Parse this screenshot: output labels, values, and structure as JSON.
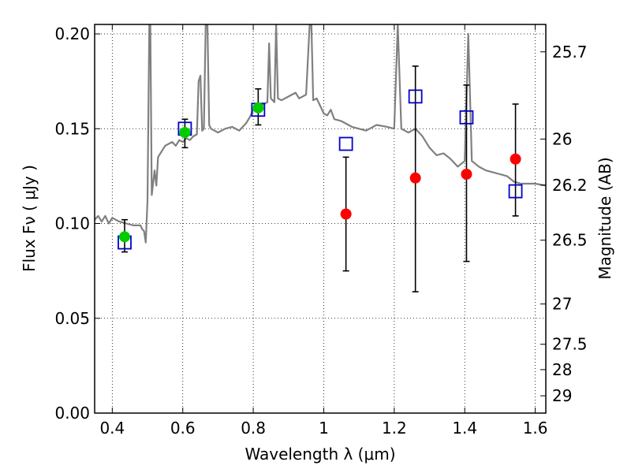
{
  "chart_data": {
    "type": "scatter",
    "xlabel": "Wavelength  λ (μm)",
    "ylabel": "Flux  Fν  ( μJy )",
    "ylabel_right": "Magnitude (AB)",
    "xlim": [
      0.35,
      1.63
    ],
    "ylim": [
      0.0,
      0.205
    ],
    "grid": true,
    "x_ticks": [
      0.4,
      0.6,
      0.8,
      1.0,
      1.2,
      1.4,
      1.6
    ],
    "x_tick_labels": [
      "0.4",
      "0.6",
      "0.8",
      "1",
      "1.2",
      "1.4",
      "1.6"
    ],
    "y_ticks": [
      0.0,
      0.05,
      0.1,
      0.15,
      0.2
    ],
    "y_tick_labels": [
      "0.00",
      "0.05",
      "0.10",
      "0.15",
      "0.20"
    ],
    "right_ticks": [
      {
        "label": "25.7",
        "mag": 25.7
      },
      {
        "label": "26",
        "mag": 26.0
      },
      {
        "label": "26.2",
        "mag": 26.2
      },
      {
        "label": "26.5",
        "mag": 26.5
      },
      {
        "label": "27",
        "mag": 27.0
      },
      {
        "label": "27.5",
        "mag": 27.5
      },
      {
        "label": "28",
        "mag": 28.0
      },
      {
        "label": "29",
        "mag": 29.0
      }
    ],
    "model_spectrum": {
      "color": "#808080",
      "points": [
        [
          0.35,
          0.102
        ],
        [
          0.36,
          0.104
        ],
        [
          0.37,
          0.101
        ],
        [
          0.38,
          0.104
        ],
        [
          0.39,
          0.1
        ],
        [
          0.4,
          0.103
        ],
        [
          0.42,
          0.101
        ],
        [
          0.44,
          0.1
        ],
        [
          0.46,
          0.099
        ],
        [
          0.48,
          0.099
        ],
        [
          0.485,
          0.097
        ],
        [
          0.49,
          0.096
        ],
        [
          0.495,
          0.09
        ],
        [
          0.5,
          0.112
        ],
        [
          0.505,
          0.205
        ],
        [
          0.508,
          0.205
        ],
        [
          0.512,
          0.115
        ],
        [
          0.52,
          0.128
        ],
        [
          0.525,
          0.12
        ],
        [
          0.53,
          0.135
        ],
        [
          0.54,
          0.138
        ],
        [
          0.55,
          0.141
        ],
        [
          0.56,
          0.142
        ],
        [
          0.57,
          0.143
        ],
        [
          0.58,
          0.141
        ],
        [
          0.59,
          0.144
        ],
        [
          0.6,
          0.143
        ],
        [
          0.61,
          0.145
        ],
        [
          0.62,
          0.144
        ],
        [
          0.63,
          0.146
        ],
        [
          0.64,
          0.147
        ],
        [
          0.645,
          0.175
        ],
        [
          0.65,
          0.178
        ],
        [
          0.655,
          0.149
        ],
        [
          0.66,
          0.15
        ],
        [
          0.665,
          0.205
        ],
        [
          0.67,
          0.205
        ],
        [
          0.675,
          0.152
        ],
        [
          0.68,
          0.15
        ],
        [
          0.7,
          0.148
        ],
        [
          0.72,
          0.15
        ],
        [
          0.74,
          0.151
        ],
        [
          0.76,
          0.149
        ],
        [
          0.78,
          0.153
        ],
        [
          0.79,
          0.156
        ],
        [
          0.8,
          0.16
        ],
        [
          0.81,
          0.159
        ],
        [
          0.82,
          0.162
        ],
        [
          0.84,
          0.164
        ],
        [
          0.845,
          0.195
        ],
        [
          0.85,
          0.166
        ],
        [
          0.86,
          0.164
        ],
        [
          0.865,
          0.205
        ],
        [
          0.87,
          0.166
        ],
        [
          0.88,
          0.165
        ],
        [
          0.9,
          0.167
        ],
        [
          0.92,
          0.169
        ],
        [
          0.93,
          0.166
        ],
        [
          0.95,
          0.168
        ],
        [
          0.96,
          0.205
        ],
        [
          0.965,
          0.205
        ],
        [
          0.97,
          0.165
        ],
        [
          0.98,
          0.166
        ],
        [
          0.99,
          0.162
        ],
        [
          1.0,
          0.158
        ],
        [
          1.01,
          0.157
        ],
        [
          1.02,
          0.16
        ],
        [
          1.03,
          0.155
        ],
        [
          1.05,
          0.154
        ],
        [
          1.08,
          0.151
        ],
        [
          1.1,
          0.15
        ],
        [
          1.12,
          0.149
        ],
        [
          1.15,
          0.152
        ],
        [
          1.18,
          0.151
        ],
        [
          1.2,
          0.15
        ],
        [
          1.21,
          0.205
        ],
        [
          1.22,
          0.15
        ],
        [
          1.24,
          0.148
        ],
        [
          1.26,
          0.15
        ],
        [
          1.28,
          0.146
        ],
        [
          1.3,
          0.14
        ],
        [
          1.32,
          0.136
        ],
        [
          1.34,
          0.137
        ],
        [
          1.36,
          0.134
        ],
        [
          1.38,
          0.13
        ],
        [
          1.4,
          0.133
        ],
        [
          1.41,
          0.2
        ],
        [
          1.42,
          0.133
        ],
        [
          1.44,
          0.13
        ],
        [
          1.46,
          0.128
        ],
        [
          1.48,
          0.127
        ],
        [
          1.5,
          0.126
        ],
        [
          1.52,
          0.125
        ],
        [
          1.54,
          0.122
        ],
        [
          1.56,
          0.121
        ],
        [
          1.58,
          0.121
        ],
        [
          1.6,
          0.121
        ],
        [
          1.63,
          0.12
        ]
      ]
    },
    "series": [
      {
        "marker": "square",
        "color": "#0000cc",
        "points": [
          {
            "x": 0.435,
            "y": 0.09
          },
          {
            "x": 0.606,
            "y": 0.15
          },
          {
            "x": 0.814,
            "y": 0.16
          },
          {
            "x": 1.063,
            "y": 0.142
          },
          {
            "x": 1.26,
            "y": 0.167
          },
          {
            "x": 1.405,
            "y": 0.156
          },
          {
            "x": 1.544,
            "y": 0.117
          }
        ]
      },
      {
        "marker": "circle",
        "color": "#00cc00",
        "points": [
          {
            "x": 0.435,
            "y": 0.093,
            "err_lo": 0.085,
            "err_hi": 0.102
          },
          {
            "x": 0.606,
            "y": 0.148,
            "err_lo": 0.14,
            "err_hi": 0.155
          },
          {
            "x": 0.814,
            "y": 0.161,
            "err_lo": 0.152,
            "err_hi": 0.171
          }
        ]
      },
      {
        "marker": "circle",
        "color": "#ff0000",
        "points": [
          {
            "x": 1.063,
            "y": 0.105,
            "err_lo": 0.075,
            "err_hi": 0.135
          },
          {
            "x": 1.26,
            "y": 0.124,
            "err_lo": 0.064,
            "err_hi": 0.183
          },
          {
            "x": 1.405,
            "y": 0.126,
            "err_lo": 0.08,
            "err_hi": 0.173
          },
          {
            "x": 1.544,
            "y": 0.134,
            "err_lo": 0.104,
            "err_hi": 0.163
          }
        ]
      }
    ]
  }
}
